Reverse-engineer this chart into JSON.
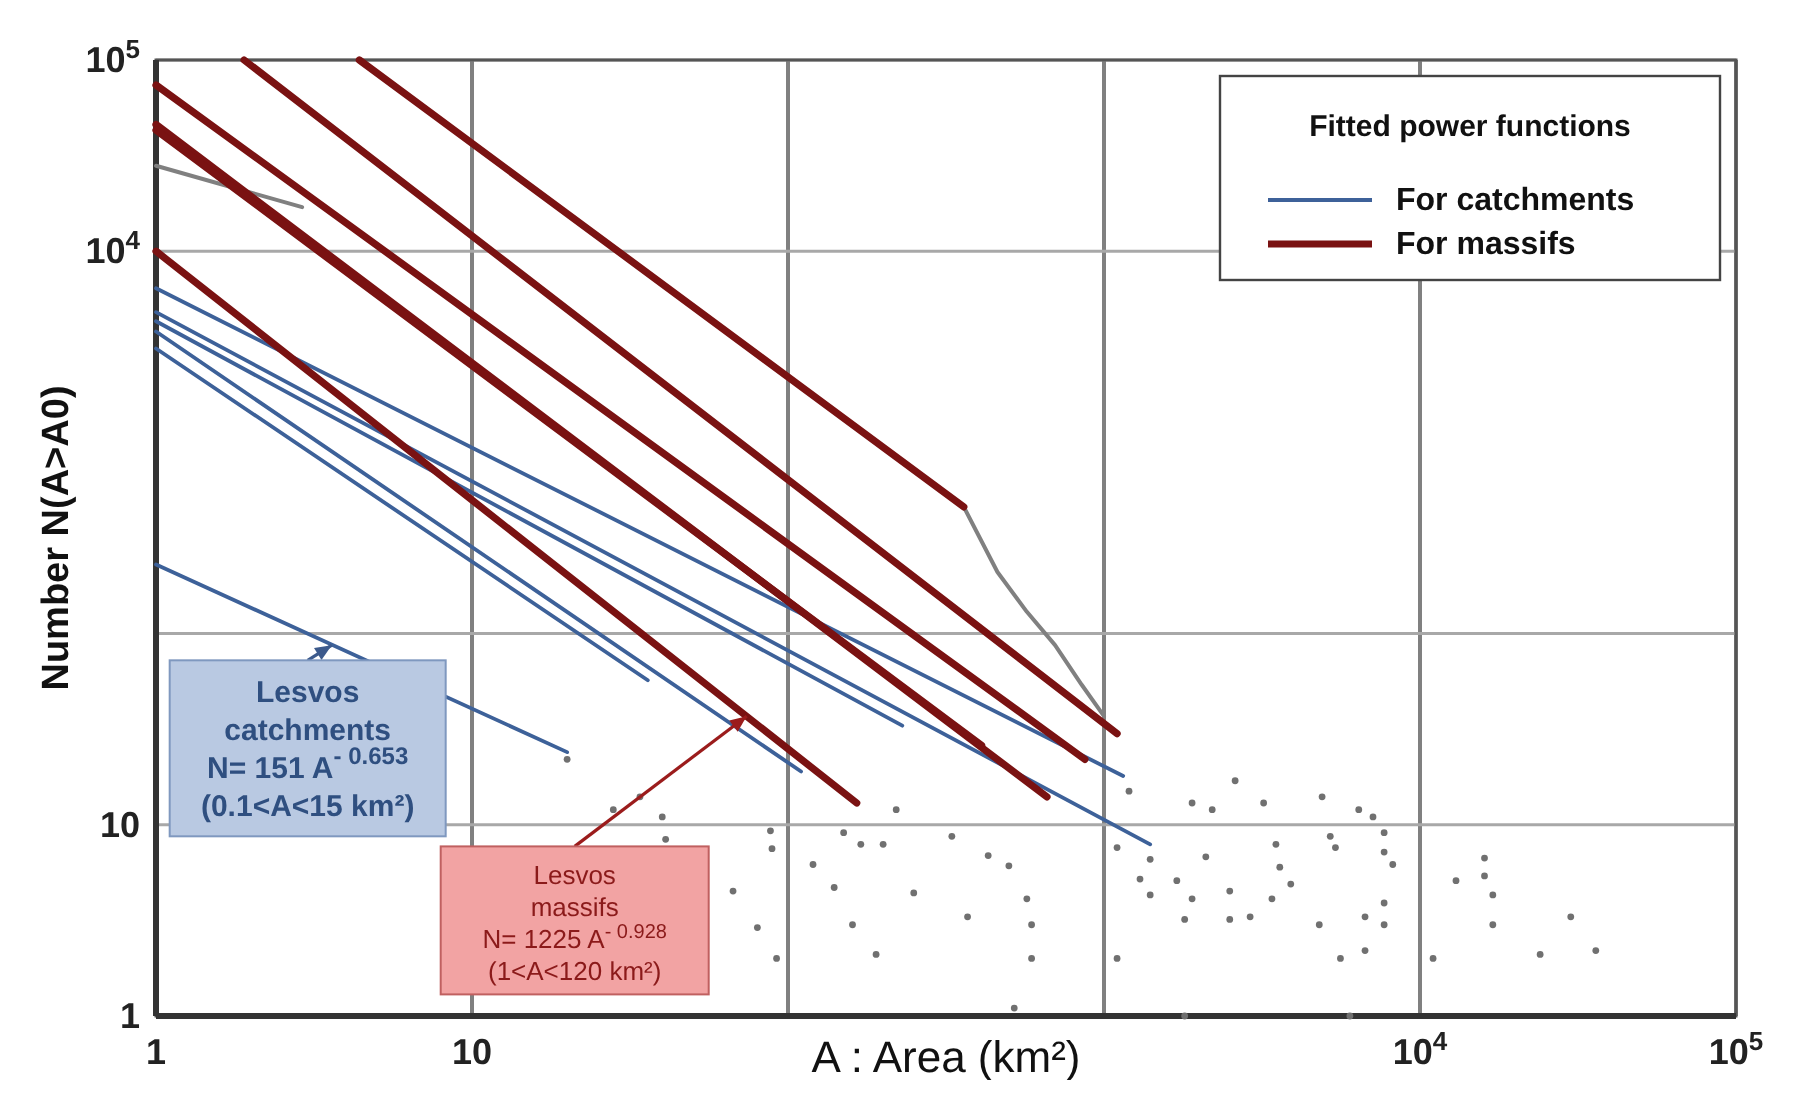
{
  "chart_data": {
    "type": "line",
    "xlabel": "A : Area (km²)",
    "ylabel": "Number N(A>A0)",
    "legend_title": "Fitted power functions",
    "legend": "top right",
    "grid": true,
    "log": "xy",
    "xlim": [
      1,
      100000
    ],
    "ylim": [
      1,
      100000
    ],
    "xticks": [
      1,
      10,
      {
        "value": 100,
        "label": null
      },
      {
        "value": 1000,
        "label": null
      },
      {
        "value": 10000,
        "label": "10$^{4}$"
      },
      {
        "value": 100000,
        "label": "10$^{5}$"
      }
    ],
    "yticks": [
      1,
      10,
      {
        "value": 100,
        "label": null
      },
      {
        "value": 10000,
        "label": "10$^{4}$"
      },
      {
        "value": 100000,
        "label": "10$^{5}$"
      }
    ],
    "series": [
      {
        "type": "scatter",
        "marker": "circle",
        "color": "#707070",
        "x": [
          1200,
          1400,
          1300,
          1400,
          1800,
          1900,
          1700,
          2100,
          2500,
          2500,
          2600,
          1900,
          2200,
          3200,
          3500,
          3600,
          3900,
          3400,
          2900,
          4900,
          5200,
          5400,
          6400,
          7100,
          7700,
          7700,
          8200,
          7700,
          7700,
          6700,
          4800,
          5600,
          6700,
          13000,
          16000,
          16000,
          17000,
          17000,
          11000,
          24000,
          30000,
          36000,
          1100,
          1100,
          590,
          590,
          500,
          570,
          370,
          430,
          330,
          250,
          200,
          1800,
          6000,
          520,
          20,
          28,
          40,
          41,
          67,
          80,
          92,
          88,
          89,
          120,
          140,
          160,
          190,
          150,
          170,
          220,
          34
        ],
        "values": [
          15,
          6.6,
          5.2,
          4.3,
          3.2,
          4.1,
          5.1,
          6.8,
          4.5,
          3.2,
          17,
          13,
          12,
          13,
          7.9,
          6.0,
          4.9,
          4.1,
          3.3,
          14,
          8.7,
          7.6,
          12,
          11,
          9.1,
          7.2,
          6.2,
          3.9,
          3.0,
          3.3,
          3.0,
          2.0,
          2.2,
          5.1,
          6.7,
          5.4,
          4.3,
          3.0,
          2.0,
          2.1,
          3.3,
          2.2,
          7.6,
          2.0,
          3.0,
          2.0,
          6.1,
          4.1,
          3.3,
          6.9,
          8.7,
          4.4,
          7.9,
          1.0,
          1.0,
          1.1,
          22,
          12,
          11,
          8.4,
          4.5,
          2.9,
          2.0,
          9.3,
          7.5,
          6.2,
          4.7,
          3.0,
          2.1,
          9.1,
          7.9,
          12,
          14
        ]
      },
      {
        "type": "line",
        "color": "#808080",
        "x": [
          360,
          460,
          570,
          700,
          850,
          1000
        ],
        "values": [
          460,
          210,
          130,
          87,
          54,
          37
        ]
      },
      {
        "type": "line",
        "color": "#808080",
        "x": [
          1,
          2.9
        ],
        "values": [
          28000,
          17000
        ]
      },
      {
        "name": "For catchments",
        "color": "#3d6199",
        "x": [
          1,
          1150
        ],
        "values": [
          6400,
          18
        ]
      },
      {
        "color": "#3d6199",
        "x": [
          1,
          1400
        ],
        "values": [
          4800,
          7.9
        ]
      },
      {
        "color": "#3d6199",
        "x": [
          1,
          110
        ],
        "values": [
          3800,
          19
        ]
      },
      {
        "color": "#3d6199",
        "x": [
          1,
          36
        ],
        "values": [
          3100,
          57
        ]
      },
      {
        "color": "#3d6199",
        "x": [
          1,
          230
        ],
        "values": [
          4300,
          33
        ]
      },
      {
        "color": "#3d6199",
        "x": [
          1,
          20
        ],
        "values": [
          230,
          24
        ]
      },
      {
        "name": "For massifs",
        "color": "#7a1212",
        "x": [
          4.4,
          360
        ],
        "values": [
          100000,
          460
        ]
      },
      {
        "color": "#7a1212",
        "x": [
          1.9,
          1100
        ],
        "values": [
          100000,
          30
        ]
      },
      {
        "color": "#7a1212",
        "x": [
          1,
          870
        ],
        "values": [
          74000,
          22
        ]
      },
      {
        "color": "#7a1212",
        "x": [
          1,
          660
        ],
        "values": [
          46000,
          14
        ]
      },
      {
        "color": "#7a1212",
        "x": [
          1,
          410
        ],
        "values": [
          43000,
          26
        ]
      },
      {
        "color": "#7a1212",
        "x": [
          1,
          165
        ],
        "values": [
          10000,
          13
        ]
      }
    ],
    "annotations": [
      {
        "text": "Lesvos\ncatchments\nN= 151 A$^{- 0.653}$\n(0.1<A<15 km²)",
        "x": 3.6,
        "y": 87
      },
      {
        "text": "Lesvos\nmassifs\nN=  1225 A$^{- 0.928}$\n(1<A<120 km²)",
        "x": 74,
        "y": 37
      }
    ]
  }
}
